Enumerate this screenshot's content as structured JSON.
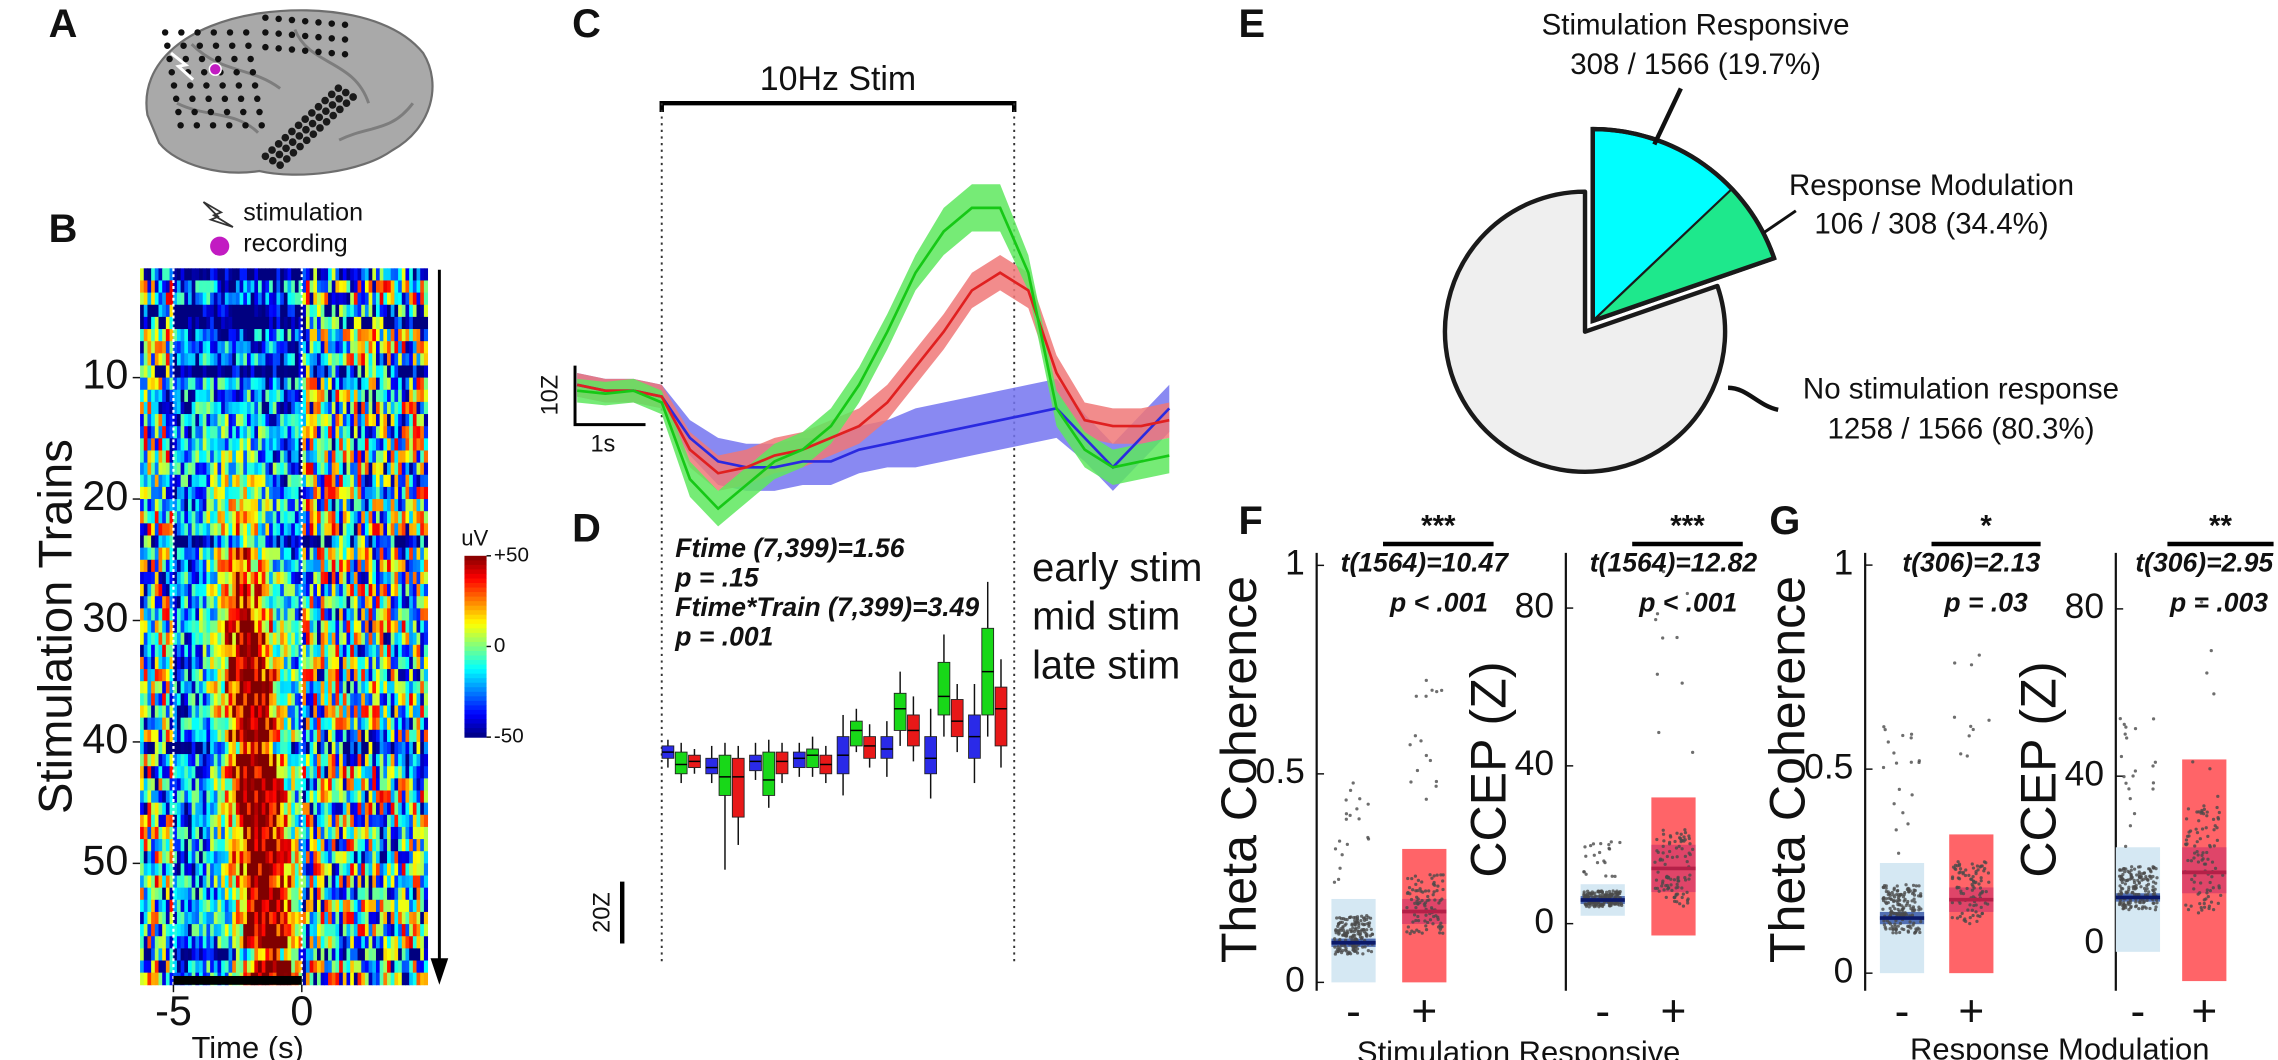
{
  "chart_data": [
    {
      "type": "brain",
      "panel": "A",
      "legend": [
        "stimulation",
        "recording"
      ],
      "recording_color": "#c21bc2"
    },
    {
      "type": "heatmap",
      "panel": "B",
      "ylabel": "Stimulation Trains",
      "xlabel": "Time (s)",
      "xlim": [
        -6.3,
        4.9
      ],
      "xticks": [
        -5,
        0
      ],
      "ylim": [
        1,
        60
      ],
      "yticks": [
        10,
        20,
        30,
        40,
        50
      ],
      "colorbar": {
        "title": "uV",
        "lim": [
          -50,
          50
        ],
        "ticks": [
          {
            "value": 50,
            "label": "+50"
          },
          0,
          -50
        ]
      }
    },
    {
      "type": "line",
      "panel": "C",
      "title": "10Hz Stim",
      "stim": [
        0,
        5
      ],
      "scalebar_y": {
        "value": 10,
        "label": "10Z"
      },
      "scalebar_x": {
        "value": 1,
        "label": "1s"
      },
      "xlim": [
        -1.23,
        7.45
      ],
      "ylim": [
        -23,
        42
      ],
      "x": [
        -1.2,
        -0.8,
        -0.4,
        0,
        0.4,
        0.8,
        1.2,
        1.6,
        2.0,
        2.4,
        2.8,
        3.2,
        3.6,
        4.0,
        4.4,
        4.8,
        5.2,
        5.6,
        6.0,
        6.4,
        6.8,
        7.2
      ],
      "series": [
        {
          "color": "#2a2ae0",
          "band_color": "#7474f0",
          "values": [
            1,
            0,
            0,
            -1,
            -8,
            -12,
            -13,
            -13,
            -12,
            -12,
            -10,
            -9,
            -8,
            -7,
            -6,
            -5,
            -4,
            -3,
            -8,
            -13,
            -8,
            -3
          ],
          "errors": [
            2,
            2,
            2,
            2,
            3,
            4,
            4,
            4,
            4,
            4,
            4,
            4,
            5,
            5,
            5,
            5,
            5,
            5,
            4,
            4,
            4,
            4
          ]
        },
        {
          "color": "#e02020",
          "band_color": "#f07878",
          "values": [
            1,
            0,
            0,
            -1,
            -10,
            -14,
            -13,
            -11,
            -10,
            -8,
            -6,
            -2,
            4,
            10,
            17,
            20,
            17,
            3,
            -5,
            -6,
            -6,
            -5
          ],
          "errors": [
            2,
            2,
            2,
            2,
            3,
            3,
            3,
            3,
            3,
            3,
            3,
            3,
            3,
            3,
            3,
            3,
            3,
            3,
            3,
            3,
            3,
            3
          ]
        },
        {
          "color": "#16c816",
          "band_color": "#5ee85e",
          "values": [
            0,
            -0.5,
            0,
            -2,
            -15,
            -20,
            -16,
            -12,
            -10,
            -6,
            1,
            10,
            20,
            27,
            31,
            31,
            20,
            -3,
            -10,
            -13,
            -12,
            -11
          ],
          "errors": [
            2,
            2,
            2,
            2,
            3,
            3,
            3,
            3,
            3,
            3,
            3,
            3,
            3,
            4,
            4,
            4,
            3,
            3,
            3,
            3,
            3,
            3
          ]
        }
      ]
    },
    {
      "type": "box",
      "panel": "D",
      "ylim": [
        -69,
        62
      ],
      "scalebar_y": {
        "value": 20,
        "label": "20Z"
      },
      "annotations": [
        "Ftime (7,399)=1.56",
        "p = .15",
        "Ftime*Train (7,399)=3.49",
        "p = .001"
      ],
      "series": [
        {
          "name": "early stim",
          "color": "#2a2ae8",
          "median": [
            0,
            -5,
            -3,
            -2,
            -1,
            1,
            -2,
            5
          ],
          "q1": [
            -2,
            -7,
            -6,
            -5,
            -7,
            -2,
            -7,
            -2
          ],
          "q3": [
            2,
            -2,
            -1,
            0,
            5,
            5,
            5,
            12
          ],
          "whislo": [
            -5,
            -10,
            -9,
            -8,
            -14,
            -8,
            -15,
            -10
          ],
          "whishi": [
            4,
            2,
            3,
            3,
            12,
            10,
            14,
            22
          ]
        },
        {
          "name": "mid stim",
          "color": "#18d818",
          "median": [
            -4,
            -8,
            -9,
            -1,
            7,
            14,
            18,
            26
          ],
          "q1": [
            -7,
            -14,
            -14,
            -5,
            2,
            7,
            12,
            12
          ],
          "q3": [
            0,
            -1,
            0,
            1,
            10,
            19,
            29,
            40
          ],
          "whislo": [
            -10,
            -38,
            -18,
            -8,
            0,
            2,
            5,
            5
          ],
          "whishi": [
            3,
            3,
            4,
            5,
            14,
            26,
            38,
            55
          ]
        },
        {
          "name": "late stim",
          "color": "#e81818",
          "median": [
            -3,
            -8,
            -3,
            -4,
            2,
            7,
            10,
            14
          ],
          "q1": [
            -5,
            -21,
            -7,
            -7,
            -2,
            2,
            5,
            2
          ],
          "q3": [
            -1,
            -2,
            0,
            -1,
            5,
            12,
            17,
            21
          ],
          "whislo": [
            -7,
            -30,
            -10,
            -10,
            -5,
            -3,
            0,
            -5
          ],
          "whishi": [
            1,
            2,
            3,
            2,
            9,
            18,
            22,
            30
          ]
        }
      ]
    },
    {
      "type": "pie",
      "panel": "E",
      "categories": [
        "Stimulation Responsive",
        "No stimulation response"
      ],
      "values": [
        19.7,
        80.3
      ],
      "value_labels": [
        "308 / 1566 (19.7%)",
        "1258 / 1566 (80.3%)"
      ],
      "colors": [
        "#00ffff",
        "#efefef"
      ],
      "explode": 0,
      "sub": {
        "name": "Response Modulation",
        "value": 34.4,
        "value_label": "106 / 308 (34.4%)",
        "color": "#1ee88c"
      }
    },
    {
      "type": "strip",
      "panel": "F",
      "xlabel": "Stimulation Responsive",
      "box_colors": [
        "#d5e8f3",
        "#ff6468"
      ],
      "ci_colors": [
        "#3b5aa8",
        "#d9406a"
      ],
      "mean_colors": [
        "#0c1a6a",
        "#b42048"
      ],
      "subplots": [
        {
          "ylabel": "Theta Coherence",
          "categories": [
            "-",
            "+"
          ],
          "ylim": [
            -0.02,
            1.03
          ],
          "yticks": [
            0,
            0.5,
            1
          ],
          "stars": "***",
          "annotations": [
            "t(1564)=10.47",
            "p < .001"
          ],
          "mean": [
            0.095,
            0.17
          ],
          "ci_low": [
            0.085,
            0.14
          ],
          "ci_high": [
            0.105,
            0.2
          ],
          "sd_low": [
            0,
            0
          ],
          "sd_high": [
            0.2,
            0.32
          ]
        },
        {
          "ylabel": "CCEP (Z)",
          "categories": [
            "-",
            "+"
          ],
          "ylim": [
            -17,
            94
          ],
          "yticks": [
            0,
            40,
            80
          ],
          "stars": "***",
          "annotations": [
            "t(1564)=12.82",
            "p < .001"
          ],
          "mean": [
            6,
            14
          ],
          "ci_low": [
            5,
            8
          ],
          "ci_high": [
            7,
            20
          ],
          "sd_low": [
            2,
            -3
          ],
          "sd_high": [
            10,
            32
          ]
        }
      ]
    },
    {
      "type": "strip",
      "panel": "G",
      "xlabel": "Response Modulation",
      "box_colors": [
        "#d5e8f3",
        "#ff6468"
      ],
      "ci_colors": [
        "#3b5aa8",
        "#d9406a"
      ],
      "mean_colors": [
        "#0c1a6a",
        "#b42048"
      ],
      "subplots": [
        {
          "ylabel": "Theta Coherence",
          "categories": [
            "-",
            "+"
          ],
          "ylim": [
            -0.043,
            1.03
          ],
          "yticks": [
            0,
            0.5,
            1
          ],
          "stars": "*",
          "annotations": [
            "t(306)=2.13",
            "p = .03"
          ],
          "mean": [
            0.135,
            0.18
          ],
          "ci_low": [
            0.12,
            0.15
          ],
          "ci_high": [
            0.15,
            0.21
          ],
          "sd_low": [
            0,
            0
          ],
          "sd_high": [
            0.27,
            0.34
          ]
        },
        {
          "ylabel": "CCEP (Z)",
          "categories": [
            "-",
            "+"
          ],
          "ylim": [
            -11.3,
            93.4
          ],
          "yticks": [
            0,
            40,
            80
          ],
          "stars": "**",
          "annotations": [
            "t(306)=2.95",
            "p = .003"
          ],
          "mean": [
            11,
            17
          ],
          "ci_low": [
            10,
            12
          ],
          "ci_high": [
            12,
            23
          ],
          "sd_low": [
            -2,
            -9
          ],
          "sd_high": [
            23,
            44
          ]
        }
      ]
    }
  ]
}
